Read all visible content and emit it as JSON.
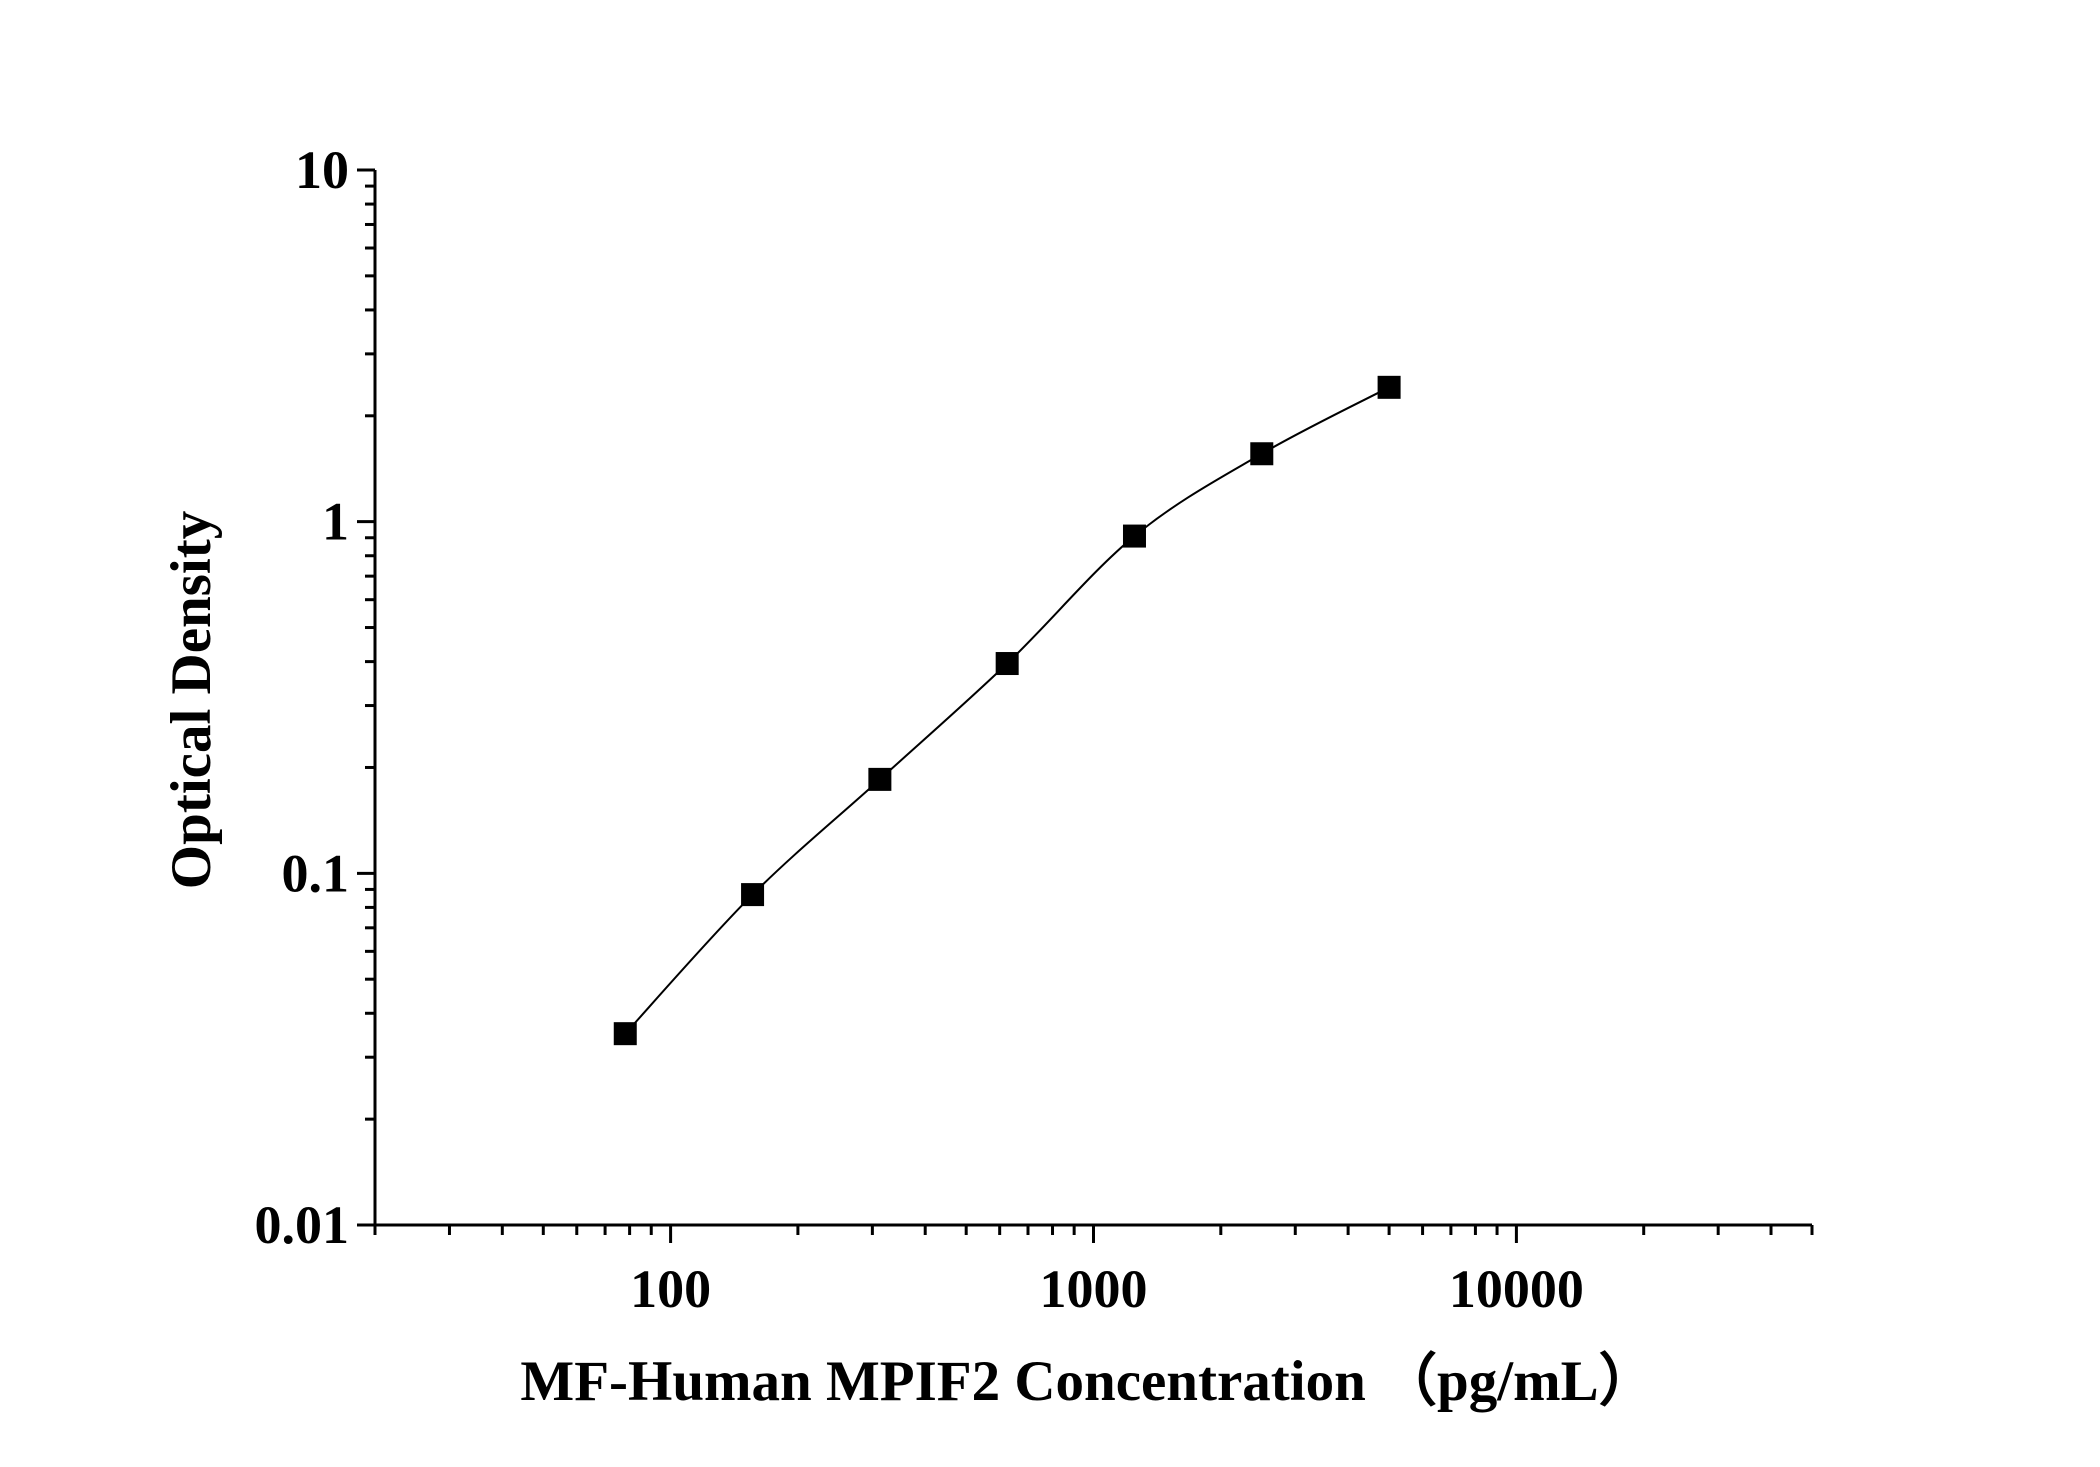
{
  "chart_data": {
    "type": "scatter",
    "title": "",
    "xlabel": "MF-Human MPIF2 Concentration （pg/mL）",
    "ylabel": "Optical Density",
    "x_scale": "log",
    "y_scale": "log",
    "xlim": [
      20,
      50000
    ],
    "ylim": [
      0.01,
      10
    ],
    "x_ticks": [
      100,
      1000,
      10000
    ],
    "x_tick_labels": [
      "100",
      "1000",
      "10000"
    ],
    "y_ticks": [
      0.01,
      0.1,
      1,
      10
    ],
    "y_tick_labels": [
      "0.01",
      "0.1",
      "1",
      "10"
    ],
    "grid": false,
    "legend": "none",
    "series": [
      {
        "marker": "square",
        "color": "#000000",
        "x": [
          78.125,
          156.25,
          312.5,
          625,
          1250,
          2500,
          5000
        ],
        "y": [
          0.035,
          0.087,
          0.185,
          0.395,
          0.91,
          1.56,
          2.41
        ],
        "fit_curve": true
      }
    ]
  }
}
